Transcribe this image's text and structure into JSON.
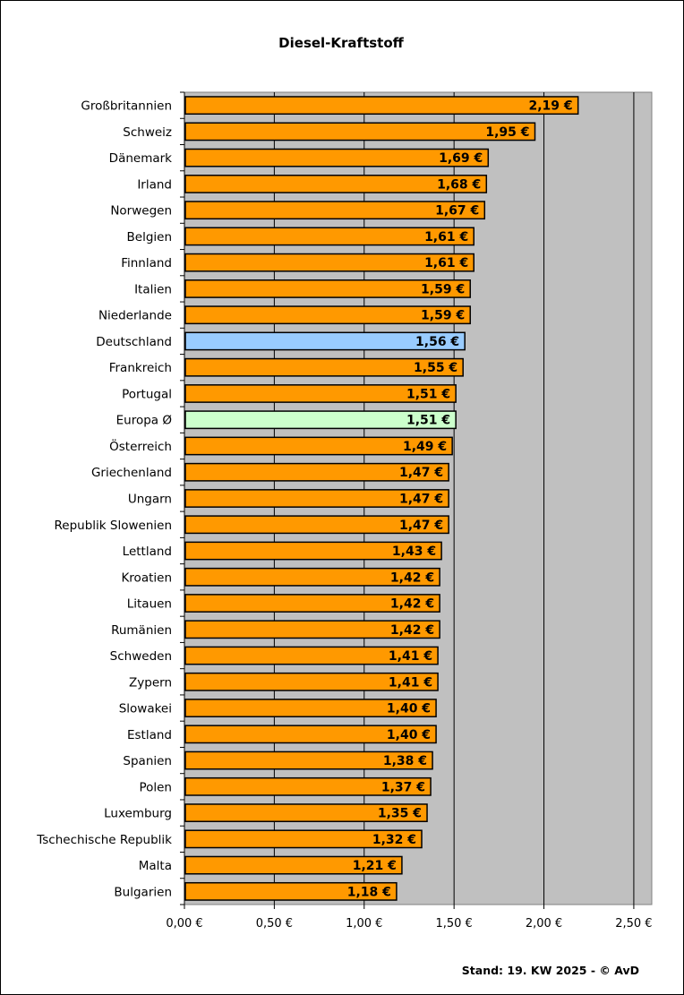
{
  "chart_data": {
    "type": "bar",
    "orientation": "horizontal",
    "title": "Diesel-Kraftstoff",
    "xlim": [
      0,
      2.6
    ],
    "xticks": [
      0,
      0.5,
      1.0,
      1.5,
      2.0,
      2.5
    ],
    "xtick_labels": [
      "0,00 €",
      "0,50 €",
      "1,00 €",
      "1,50 €",
      "2,00 €",
      "2,50 €"
    ],
    "grid": "vertical major gridlines",
    "colors": {
      "default": "#ff9900",
      "highlight_germany": "#99ccff",
      "highlight_europe": "#ccffcc",
      "plot_background": "#c0c0c0"
    },
    "categories": [
      "Großbritannien",
      "Schweiz",
      "Dänemark",
      "Irland",
      "Norwegen",
      "Belgien",
      "Finnland",
      "Italien",
      "Niederlande",
      "Deutschland",
      "Frankreich",
      "Portugal",
      "Europa Ø",
      "Österreich",
      "Griechenland",
      "Ungarn",
      "Republik Slowenien",
      "Lettland",
      "Kroatien",
      "Litauen",
      "Rumänien",
      "Schweden",
      "Zypern",
      "Slowakei",
      "Estland",
      "Spanien",
      "Polen",
      "Luxemburg",
      "Tschechische Republik",
      "Malta",
      "Bulgarien"
    ],
    "values": [
      2.19,
      1.95,
      1.69,
      1.68,
      1.67,
      1.61,
      1.61,
      1.59,
      1.59,
      1.56,
      1.55,
      1.51,
      1.51,
      1.49,
      1.47,
      1.47,
      1.47,
      1.43,
      1.42,
      1.42,
      1.42,
      1.41,
      1.41,
      1.4,
      1.4,
      1.38,
      1.37,
      1.35,
      1.32,
      1.21,
      1.18
    ],
    "data_labels": [
      "2,19 €",
      "1,95 €",
      "1,69 €",
      "1,68 €",
      "1,67 €",
      "1,61 €",
      "1,61 €",
      "1,59 €",
      "1,59 €",
      "1,56 €",
      "1,55 €",
      "1,51 €",
      "1,51 €",
      "1,49 €",
      "1,47 €",
      "1,47 €",
      "1,47 €",
      "1,43 €",
      "1,42 €",
      "1,42 €",
      "1,42 €",
      "1,41 €",
      "1,41 €",
      "1,40 €",
      "1,40 €",
      "1,38 €",
      "1,37 €",
      "1,35 €",
      "1,32 €",
      "1,21 €",
      "1,18 €"
    ],
    "highlight": {
      "Deutschland": "highlight_germany",
      "Europa Ø": "highlight_europe"
    }
  },
  "footer": "Stand: 19. KW 2025 - © AvD"
}
